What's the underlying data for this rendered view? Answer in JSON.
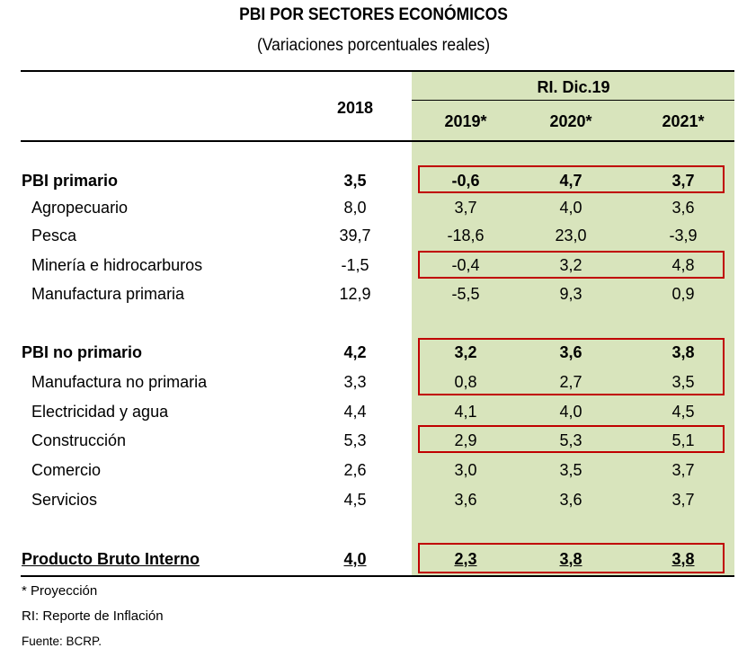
{
  "title": "PBI POR SECTORES ECONÓMICOS",
  "subtitle": "(Variaciones porcentuales reales)",
  "header": {
    "group_label": "RI. Dic.19",
    "columns": [
      "2018",
      "2019*",
      "2020*",
      "2021*"
    ]
  },
  "colors": {
    "highlight_bg": "#d8e4bc",
    "box_border": "#c00000"
  },
  "rows": [
    {
      "label": "PBI primario",
      "values": [
        "3,5",
        "-0,6",
        "4,7",
        "3,7"
      ],
      "bold": true,
      "boxed": true
    },
    {
      "label": "Agropecuario",
      "values": [
        "8,0",
        "3,7",
        "4,0",
        "3,6"
      ]
    },
    {
      "label": "Pesca",
      "values": [
        "39,7",
        "-18,6",
        "23,0",
        "-3,9"
      ]
    },
    {
      "label": "Minería e hidrocarburos",
      "values": [
        "-1,5",
        "-0,4",
        "3,2",
        "4,8"
      ],
      "boxed": true
    },
    {
      "label": "Manufactura primaria",
      "values": [
        "12,9",
        "-5,5",
        "9,3",
        "0,9"
      ]
    },
    {
      "label": "PBI no primario",
      "values": [
        "4,2",
        "3,2",
        "3,6",
        "3,8"
      ],
      "bold": true,
      "boxed": true
    },
    {
      "label": "Manufactura no primaria",
      "values": [
        "3,3",
        "0,8",
        "2,7",
        "3,5"
      ],
      "boxed": true
    },
    {
      "label": "Electricidad y agua",
      "values": [
        "4,4",
        "4,1",
        "4,0",
        "4,5"
      ]
    },
    {
      "label": "Construcción",
      "values": [
        "5,3",
        "2,9",
        "5,3",
        "5,1"
      ],
      "boxed": true
    },
    {
      "label": "Comercio",
      "values": [
        "2,6",
        "3,0",
        "3,5",
        "3,7"
      ]
    },
    {
      "label": "Servicios",
      "values": [
        "4,5",
        "3,6",
        "3,6",
        "3,7"
      ]
    },
    {
      "label": "Producto Bruto Interno",
      "values": [
        "4,0",
        "2,3",
        "3,8",
        "3,8"
      ],
      "bold": true,
      "underline": true,
      "boxed": true
    }
  ],
  "footnotes": [
    "* Proyección",
    "RI: Reporte de Inflación",
    "Fuente: BCRP."
  ]
}
